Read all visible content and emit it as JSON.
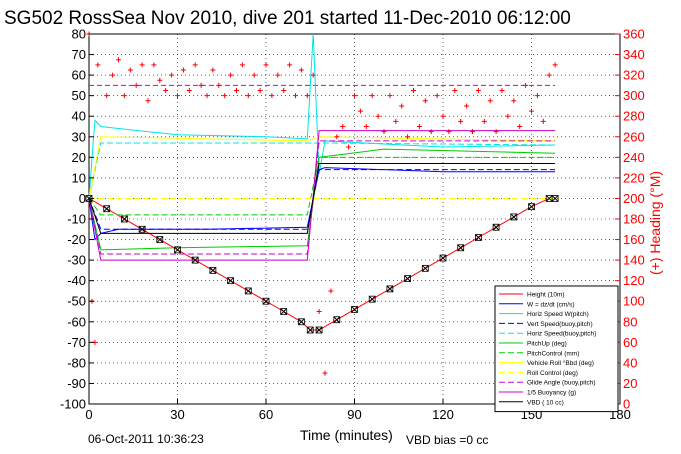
{
  "chart_data": {
    "type": "line",
    "title": "SG502 RossSea Nov 2010, dive 201 started 11-Dec-2010 06:12:00",
    "xlabel": "Time (minutes)",
    "ylabel_right": "(+) Heading (°M)",
    "footer_left": "06-Oct-2011 10:36:23",
    "footer_right": "VBD bias =0 cc",
    "xlim": [
      0,
      180
    ],
    "ylim": [
      -100,
      80
    ],
    "ylim_right": [
      0,
      360
    ],
    "x_ticks": [
      0,
      30,
      60,
      90,
      120,
      150,
      180
    ],
    "y_ticks": [
      -100,
      -90,
      -80,
      -70,
      -60,
      -50,
      -40,
      -30,
      -20,
      -10,
      0,
      10,
      20,
      30,
      40,
      50,
      60,
      70,
      80
    ],
    "y_right_ticks": [
      0,
      20,
      40,
      60,
      80,
      100,
      120,
      140,
      160,
      180,
      200,
      220,
      240,
      260,
      280,
      300,
      320,
      340,
      360
    ],
    "legend_position": "bottom-right",
    "legend": [
      {
        "name": "Height (10m)",
        "color": "#ff0000",
        "dash": "solid"
      },
      {
        "name": "W = dz/dt (cm/s)",
        "color": "#0000ff",
        "dash": "solid"
      },
      {
        "name": "Horiz Speed W(pitch)",
        "color": "#00e5e5",
        "dash": "solid"
      },
      {
        "name": "Vert Speed(buoy,pitch)",
        "color": "#0000ff",
        "dash": "dashed"
      },
      {
        "name": "Horiz Speed(buoy,pitch)",
        "color": "#00e5e5",
        "dash": "dashed"
      },
      {
        "name": "PitchUp (deg)",
        "color": "#00cc00",
        "dash": "solid"
      },
      {
        "name": "PitchControl (mm)",
        "color": "#00cc00",
        "dash": "dashed"
      },
      {
        "name": "Vehicle Roll °Bbd (deg)",
        "color": "#ffff00",
        "dash": "solid"
      },
      {
        "name": "Roll Control (deg)",
        "color": "#ffff00",
        "dash": "dashed"
      },
      {
        "name": "Glide Angle (buoy,pitch)",
        "color": "#cc00cc",
        "dash": "dashed"
      },
      {
        "name": "1/5 Buoyancy (g)",
        "color": "#cc00cc",
        "dash": "solid"
      },
      {
        "name": "VBD ( 10 cc)",
        "color": "#000000",
        "dash": "solid"
      }
    ],
    "series": [
      {
        "name": "Height (10m)",
        "color": "#ff0000",
        "dash": "solid",
        "marker": "x",
        "x": [
          0,
          6,
          12,
          18,
          24,
          30,
          36,
          42,
          48,
          54,
          60,
          66,
          72,
          75,
          78,
          84,
          90,
          96,
          102,
          108,
          114,
          120,
          126,
          132,
          138,
          144,
          150,
          156,
          158
        ],
        "y": [
          0,
          -5,
          -10,
          -15,
          -20,
          -25,
          -30,
          -35,
          -40,
          -45,
          -50,
          -55,
          -60,
          -64,
          -64,
          -59,
          -54,
          -49,
          -44,
          -39,
          -34,
          -29,
          -24,
          -19,
          -14,
          -9,
          -4,
          0,
          0
        ]
      },
      {
        "name": "W = dz/dt (cm/s)",
        "color": "#0000ff",
        "dash": "solid",
        "x": [
          0,
          2,
          4,
          10,
          40,
          74,
          76,
          78,
          80,
          120,
          158
        ],
        "y": [
          0,
          -20,
          -17,
          -15,
          -15,
          -14,
          0,
          14,
          15,
          13,
          13
        ]
      },
      {
        "name": "Horiz Speed W(pitch)",
        "color": "#00e5e5",
        "dash": "solid",
        "x": [
          0,
          2,
          4,
          10,
          30,
          60,
          74,
          76,
          78,
          80,
          120,
          158
        ],
        "y": [
          0,
          38,
          35,
          34,
          31,
          30,
          29,
          80,
          12,
          28,
          25,
          26
        ]
      },
      {
        "name": "Vert Speed(buoy,pitch)",
        "color": "#0000ff",
        "dash": "dashed",
        "x": [
          0,
          4,
          74,
          78,
          158
        ],
        "y": [
          0,
          -15,
          -15,
          14,
          14
        ]
      },
      {
        "name": "Horiz Speed(buoy,pitch)",
        "color": "#00e5e5",
        "dash": "dashed",
        "x": [
          0,
          4,
          74,
          78,
          158
        ],
        "y": [
          0,
          27,
          27,
          27,
          26
        ]
      },
      {
        "name": "PitchUp (deg)",
        "color": "#00cc00",
        "dash": "solid",
        "x": [
          0,
          4,
          30,
          74,
          78,
          100,
          158
        ],
        "y": [
          0,
          -25,
          -24,
          -23,
          20,
          24,
          22
        ]
      },
      {
        "name": "PitchControl (mm)",
        "color": "#00cc00",
        "dash": "dashed",
        "x": [
          0,
          4,
          74,
          78,
          158
        ],
        "y": [
          0,
          -8,
          -8,
          20,
          20
        ]
      },
      {
        "name": "Vehicle Roll °Bbd (deg)",
        "color": "#ffff00",
        "dash": "solid",
        "x": [
          0,
          4,
          74,
          78,
          158
        ],
        "y": [
          0,
          30,
          28,
          30,
          28
        ]
      },
      {
        "name": "Roll Control (deg)",
        "color": "#ffff00",
        "dash": "dashed",
        "x": [
          0,
          4,
          74,
          78,
          158
        ],
        "y": [
          0,
          0,
          0,
          0,
          0
        ]
      },
      {
        "name": "Glide Angle (buoy,pitch)",
        "color": "#cc00cc",
        "dash": "dashed",
        "x": [
          0,
          4,
          74,
          78,
          158
        ],
        "y": [
          0,
          -27,
          -27,
          28,
          28
        ]
      },
      {
        "name": "1/5 Buoyancy (g)",
        "color": "#cc00cc",
        "dash": "solid",
        "x": [
          0,
          4,
          74,
          78,
          158
        ],
        "y": [
          0,
          -30,
          -30,
          33,
          33
        ]
      },
      {
        "name": "VBD ( 10 cc)",
        "color": "#000000",
        "dash": "solid",
        "x": [
          0,
          4,
          74,
          78,
          158
        ],
        "y": [
          0,
          -17,
          -17,
          17,
          17
        ]
      }
    ],
    "heading": {
      "name": "Heading",
      "color": "#ff0000",
      "marker": "+",
      "axis": "right",
      "x": [
        0,
        1,
        2,
        3,
        6,
        8,
        10,
        12,
        14,
        16,
        18,
        20,
        22,
        24,
        26,
        28,
        30,
        32,
        34,
        36,
        38,
        40,
        42,
        44,
        46,
        48,
        50,
        52,
        54,
        56,
        58,
        60,
        62,
        64,
        66,
        68,
        70,
        72,
        74,
        76,
        78,
        80,
        82,
        84,
        86,
        88,
        90,
        92,
        94,
        96,
        98,
        100,
        102,
        104,
        106,
        108,
        110,
        112,
        114,
        116,
        118,
        120,
        122,
        124,
        126,
        128,
        130,
        132,
        134,
        136,
        138,
        140,
        142,
        144,
        146,
        148,
        150,
        152,
        154,
        156,
        158
      ],
      "y": [
        360,
        100,
        60,
        330,
        300,
        320,
        335,
        300,
        325,
        310,
        330,
        295,
        330,
        315,
        305,
        320,
        300,
        325,
        305,
        330,
        310,
        300,
        325,
        310,
        300,
        320,
        305,
        330,
        300,
        320,
        305,
        330,
        300,
        320,
        305,
        330,
        300,
        325,
        300,
        320,
        90,
        30,
        110,
        260,
        270,
        250,
        300,
        285,
        270,
        300,
        280,
        265,
        300,
        275,
        290,
        260,
        305,
        270,
        295,
        265,
        300,
        280,
        265,
        305,
        275,
        290,
        265,
        305,
        275,
        295,
        265,
        305,
        280,
        295,
        270,
        310,
        285,
        300,
        275,
        320,
        330
      ]
    },
    "reference_lines": [
      {
        "axis": "right",
        "value": 310,
        "color": "#cc00cc",
        "dash": "dashed"
      }
    ]
  }
}
